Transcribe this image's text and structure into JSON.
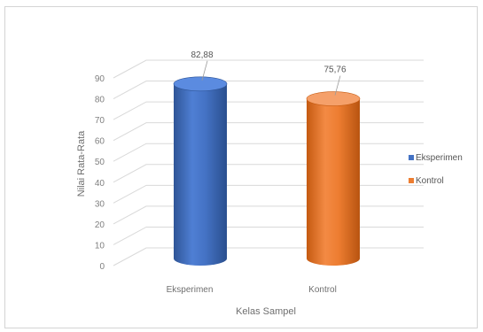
{
  "chart_data": {
    "type": "bar",
    "style": "3d-cylinder",
    "categories": [
      "Eksperimen",
      "Kontrol"
    ],
    "values": [
      82.88,
      75.76
    ],
    "data_labels": [
      "82,88",
      "75,76"
    ],
    "xlabel": "Kelas Sampel",
    "ylabel": "Nilai Rata-Rata",
    "ylim": [
      0,
      90
    ],
    "yticks": [
      "0",
      "10",
      "20",
      "30",
      "40",
      "50",
      "60",
      "70",
      "80",
      "90"
    ],
    "grid": true,
    "legend": {
      "placement": "right",
      "entries": [
        {
          "name": "Eksperimen",
          "color": "#4472c4"
        },
        {
          "name": "Kontrol",
          "color": "#ed7d31"
        }
      ]
    },
    "colors": [
      "#4472c4",
      "#ed7d31"
    ]
  }
}
